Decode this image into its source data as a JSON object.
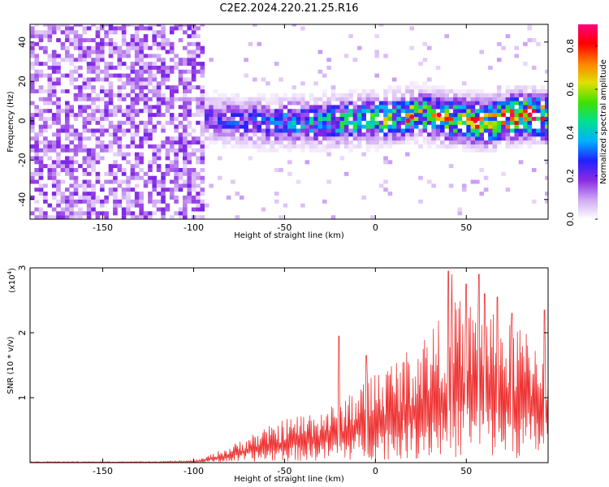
{
  "title": "C2E2.2024.220.21.25.R16",
  "chart_data": [
    {
      "type": "heatmap",
      "title": "C2E2.2024.220.21.25.R16",
      "xlabel": "Height of straight line (km)",
      "ylabel": "Frequency (Hz)",
      "xlim": [
        -190,
        95
      ],
      "ylim": [
        -50,
        49
      ],
      "xticks": [
        -150,
        -100,
        -50,
        0,
        50
      ],
      "yticks": [
        -40,
        -20,
        0,
        20,
        40
      ],
      "colorbar": {
        "label": "Normalized spectral amplitude",
        "range": [
          0.0,
          0.9
        ],
        "ticks": [
          0.0,
          0.2,
          0.4,
          0.6,
          0.8
        ],
        "colors": [
          "#ffffff",
          "#cfa8f4",
          "#8a2be2",
          "#2020ff",
          "#00b0ff",
          "#00e090",
          "#40e000",
          "#e0e000",
          "#ff8000",
          "#ff0000",
          "#ff0080"
        ]
      },
      "regions": [
        {
          "x_range": [
            -190,
            -95
          ],
          "freq_range": [
            -50,
            49
          ],
          "typical_amplitude": 0.1,
          "note": "broadband noise"
        },
        {
          "x_range": [
            -95,
            95
          ],
          "center_freq_profile": [
            [
              -95,
              0
            ],
            [
              -60,
              -2
            ],
            [
              -20,
              -1
            ],
            [
              0,
              0
            ],
            [
              15,
              1
            ],
            [
              20,
              3
            ],
            [
              40,
              0
            ],
            [
              60,
              -2
            ],
            [
              80,
              2
            ],
            [
              92,
              1
            ]
          ],
          "half_width_hz": 10,
          "peak_amplitude": 0.85
        }
      ],
      "peak_points": [
        [
          18,
          0
        ],
        [
          20,
          2
        ],
        [
          35,
          3
        ],
        [
          55,
          0
        ],
        [
          85,
          3
        ],
        [
          92,
          1
        ]
      ]
    },
    {
      "type": "line",
      "xlabel": "Height of straight line (km)",
      "ylabel": "SNR (10 * v/v)",
      "yscale_label": "(x10",
      "yscale_exponent": "4",
      "xlim": [
        -190,
        95
      ],
      "ylim": [
        0,
        3
      ],
      "xticks": [
        -150,
        -100,
        -50,
        0,
        50
      ],
      "yticks": [
        1,
        2,
        3
      ],
      "series": [
        {
          "color": "#ee3333",
          "envelope_x": [
            -190,
            -120,
            -100,
            -95,
            -90,
            -80,
            -70,
            -60,
            -50,
            -40,
            -30,
            -20,
            -15,
            -10,
            -5,
            0,
            10,
            20,
            25,
            30,
            35,
            40,
            45,
            50,
            55,
            60,
            65,
            70,
            75,
            80,
            85,
            90,
            95
          ],
          "envelope_y": [
            0.01,
            0.01,
            0.02,
            0.04,
            0.08,
            0.15,
            0.25,
            0.32,
            0.4,
            0.45,
            0.5,
            0.55,
            0.65,
            0.7,
            0.8,
            0.85,
            0.95,
            1.05,
            1.15,
            1.25,
            1.3,
            1.4,
            1.5,
            1.5,
            1.45,
            1.4,
            1.35,
            1.3,
            1.25,
            1.25,
            1.2,
            1.15,
            1.1
          ],
          "spikes": [
            [
              -20,
              1.95
            ],
            [
              -5,
              1.65
            ],
            [
              40,
              2.95
            ],
            [
              42,
              2.9
            ],
            [
              50,
              2.75
            ],
            [
              57,
              2.9
            ],
            [
              60,
              2.6
            ],
            [
              67,
              2.55
            ],
            [
              75,
              2.3
            ],
            [
              93,
              2.35
            ]
          ]
        }
      ]
    }
  ]
}
